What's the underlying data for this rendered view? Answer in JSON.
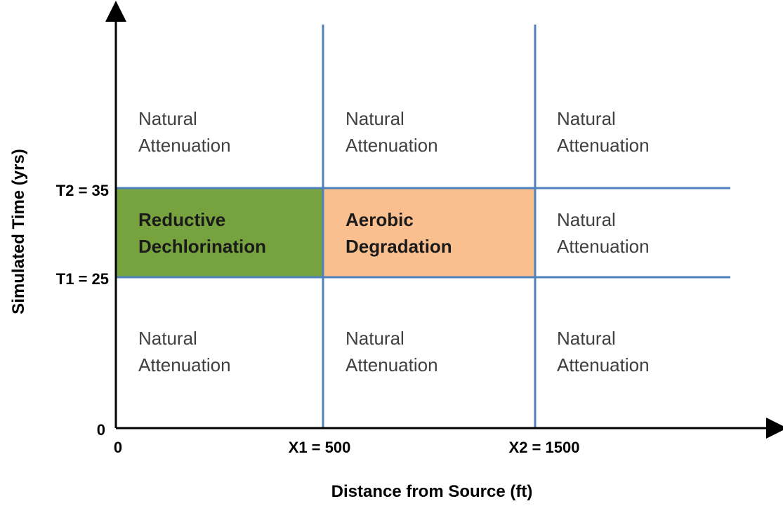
{
  "x_axis_label": "Distance from Source (ft)",
  "y_axis_label": "Simulated Time (yrs)",
  "x_ticks": [
    "0",
    "X1 = 500",
    "X2 = 1500"
  ],
  "y_ticks": [
    "0",
    "T1 = 25",
    "T2 = 35"
  ],
  "cells": [
    [
      "Natural",
      "Attenuation"
    ],
    [
      "Natural",
      "Attenuation"
    ],
    [
      "Natural",
      "Attenuation"
    ],
    [
      "Reductive",
      "Dechlorination"
    ],
    [
      "Aerobic",
      "Degradation"
    ],
    [
      "Natural",
      "Attenuation"
    ],
    [
      "Natural",
      "Attenuation"
    ],
    [
      "Natural",
      "Attenuation"
    ],
    [
      "Natural",
      "Attenuation"
    ]
  ]
}
